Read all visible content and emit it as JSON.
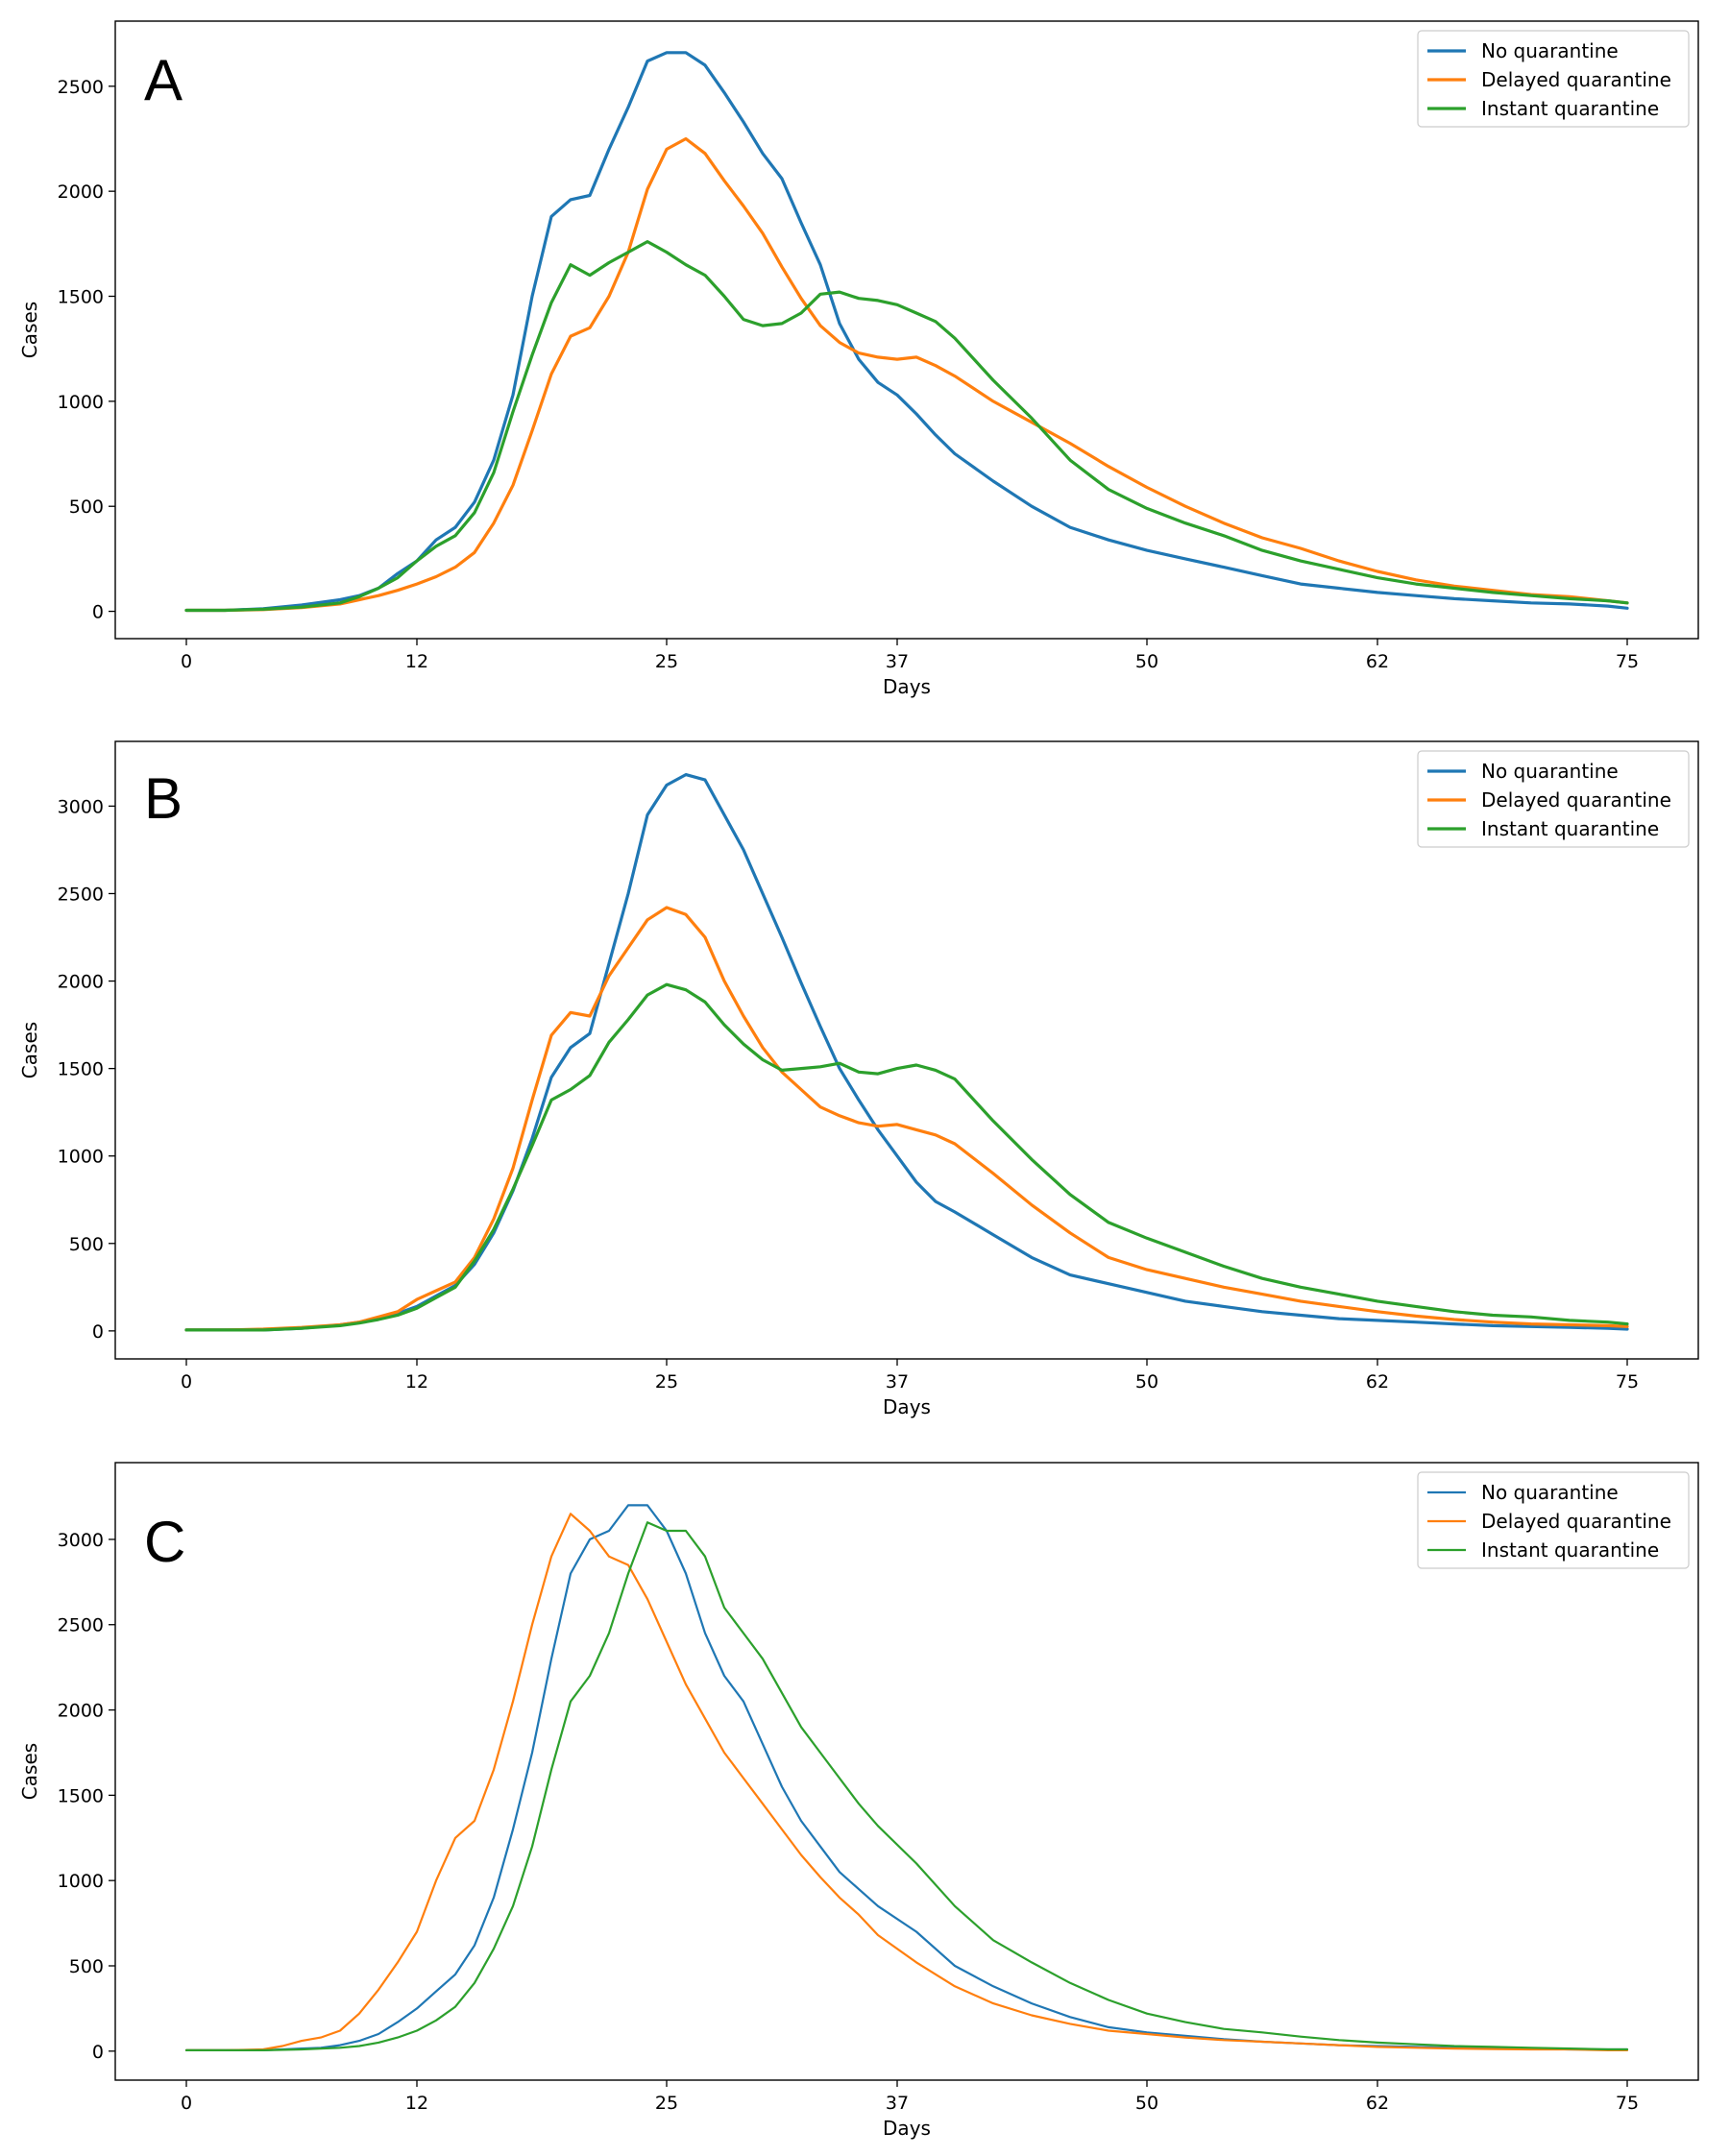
{
  "chart_data": [
    {
      "panel": "A",
      "type": "line",
      "xlabel": "Days",
      "ylabel": "Cases",
      "xticks": [
        0,
        12,
        25,
        37,
        50,
        62,
        75
      ],
      "yticks": [
        0,
        500,
        1000,
        1500,
        2000,
        2500
      ],
      "xlim": [
        -3.7,
        78.7
      ],
      "ylim": [
        -130,
        2810
      ],
      "legend_position": "top-right",
      "series": [
        {
          "name": "No quarantine",
          "color": "#1f77b4",
          "x": [
            0,
            2,
            4,
            6,
            8,
            9,
            10,
            11,
            12,
            13,
            14,
            15,
            16,
            17,
            18,
            19,
            20,
            21,
            22,
            23,
            24,
            25,
            26,
            27,
            28,
            29,
            30,
            31,
            32,
            33,
            34,
            35,
            36,
            37,
            38,
            39,
            40,
            42,
            44,
            46,
            48,
            50,
            52,
            54,
            56,
            58,
            60,
            62,
            64,
            66,
            68,
            70,
            72,
            74,
            75
          ],
          "y": [
            5,
            5,
            12,
            30,
            55,
            75,
            110,
            180,
            240,
            340,
            400,
            520,
            720,
            1030,
            1500,
            1880,
            1960,
            1980,
            2200,
            2400,
            2620,
            2660,
            2660,
            2600,
            2470,
            2330,
            2180,
            2060,
            1850,
            1650,
            1370,
            1200,
            1090,
            1030,
            940,
            840,
            750,
            620,
            500,
            400,
            340,
            290,
            250,
            210,
            170,
            130,
            110,
            90,
            75,
            60,
            50,
            40,
            35,
            25,
            15
          ]
        },
        {
          "name": "Delayed quarantine",
          "color": "#ff7f0e",
          "x": [
            0,
            2,
            4,
            6,
            8,
            9,
            10,
            11,
            12,
            13,
            14,
            15,
            16,
            17,
            18,
            19,
            20,
            21,
            22,
            23,
            24,
            25,
            26,
            27,
            28,
            29,
            30,
            31,
            32,
            33,
            34,
            35,
            36,
            37,
            38,
            39,
            40,
            42,
            44,
            46,
            48,
            50,
            52,
            54,
            56,
            58,
            60,
            62,
            64,
            66,
            68,
            70,
            72,
            74,
            75
          ],
          "y": [
            5,
            5,
            8,
            18,
            35,
            55,
            75,
            100,
            130,
            165,
            210,
            280,
            420,
            600,
            860,
            1130,
            1310,
            1350,
            1500,
            1710,
            2010,
            2200,
            2250,
            2180,
            2050,
            1930,
            1800,
            1640,
            1490,
            1360,
            1280,
            1230,
            1210,
            1200,
            1210,
            1170,
            1120,
            1000,
            900,
            800,
            690,
            590,
            500,
            420,
            350,
            300,
            240,
            190,
            150,
            120,
            100,
            80,
            70,
            50,
            40
          ]
        },
        {
          "name": "Instant quarantine",
          "color": "#2ca02c",
          "x": [
            0,
            2,
            4,
            6,
            8,
            9,
            10,
            11,
            12,
            13,
            14,
            15,
            16,
            17,
            18,
            19,
            20,
            21,
            22,
            23,
            24,
            25,
            26,
            27,
            28,
            29,
            30,
            31,
            32,
            33,
            34,
            35,
            36,
            37,
            38,
            39,
            40,
            42,
            44,
            46,
            48,
            50,
            52,
            54,
            56,
            58,
            60,
            62,
            64,
            66,
            68,
            70,
            72,
            74,
            75
          ],
          "y": [
            5,
            5,
            10,
            20,
            40,
            70,
            110,
            160,
            240,
            310,
            360,
            470,
            660,
            950,
            1220,
            1470,
            1650,
            1600,
            1660,
            1710,
            1760,
            1710,
            1650,
            1600,
            1500,
            1390,
            1360,
            1370,
            1420,
            1510,
            1520,
            1490,
            1480,
            1460,
            1420,
            1380,
            1300,
            1100,
            920,
            720,
            580,
            490,
            420,
            360,
            290,
            240,
            200,
            160,
            130,
            110,
            90,
            75,
            60,
            50,
            40
          ]
        }
      ]
    },
    {
      "panel": "B",
      "type": "line",
      "xlabel": "Days",
      "ylabel": "Cases",
      "xticks": [
        0,
        12,
        25,
        37,
        50,
        62,
        75
      ],
      "yticks": [
        0,
        500,
        1000,
        1500,
        2000,
        2500,
        3000
      ],
      "xlim": [
        -3.7,
        78.7
      ],
      "ylim": [
        -160,
        3370
      ],
      "legend_position": "top-right",
      "series": [
        {
          "name": "No quarantine",
          "color": "#1f77b4",
          "x": [
            0,
            2,
            4,
            6,
            8,
            9,
            10,
            11,
            12,
            13,
            14,
            15,
            16,
            17,
            18,
            19,
            20,
            21,
            22,
            23,
            24,
            25,
            26,
            27,
            28,
            29,
            30,
            31,
            32,
            33,
            34,
            35,
            36,
            37,
            38,
            39,
            40,
            42,
            44,
            46,
            48,
            50,
            52,
            54,
            56,
            58,
            60,
            62,
            64,
            66,
            68,
            70,
            72,
            74,
            75
          ],
          "y": [
            5,
            5,
            5,
            15,
            35,
            50,
            70,
            100,
            140,
            200,
            260,
            380,
            560,
            800,
            1100,
            1450,
            1620,
            1700,
            2100,
            2500,
            2950,
            3120,
            3180,
            3150,
            2950,
            2750,
            2500,
            2250,
            1990,
            1740,
            1500,
            1320,
            1150,
            1000,
            850,
            740,
            680,
            550,
            420,
            320,
            270,
            220,
            170,
            140,
            110,
            90,
            70,
            60,
            50,
            40,
            30,
            25,
            20,
            15,
            10
          ]
        },
        {
          "name": "Delayed quarantine",
          "color": "#ff7f0e",
          "x": [
            0,
            2,
            4,
            6,
            8,
            9,
            10,
            11,
            12,
            13,
            14,
            15,
            16,
            17,
            18,
            19,
            20,
            21,
            22,
            23,
            24,
            25,
            26,
            27,
            28,
            29,
            30,
            31,
            32,
            33,
            34,
            35,
            36,
            37,
            38,
            39,
            40,
            42,
            44,
            46,
            48,
            50,
            52,
            54,
            56,
            58,
            60,
            62,
            64,
            66,
            68,
            70,
            72,
            74,
            75
          ],
          "y": [
            5,
            5,
            10,
            20,
            35,
            50,
            80,
            110,
            180,
            230,
            280,
            420,
            640,
            930,
            1320,
            1690,
            1820,
            1800,
            2030,
            2190,
            2350,
            2420,
            2380,
            2250,
            2000,
            1800,
            1620,
            1480,
            1380,
            1280,
            1230,
            1190,
            1170,
            1180,
            1150,
            1120,
            1070,
            900,
            720,
            560,
            420,
            350,
            300,
            250,
            210,
            170,
            140,
            110,
            85,
            65,
            50,
            40,
            35,
            30,
            25
          ]
        },
        {
          "name": "Instant quarantine",
          "color": "#2ca02c",
          "x": [
            0,
            2,
            4,
            6,
            8,
            9,
            10,
            11,
            12,
            13,
            14,
            15,
            16,
            17,
            18,
            19,
            20,
            21,
            22,
            23,
            24,
            25,
            26,
            27,
            28,
            29,
            30,
            31,
            32,
            33,
            34,
            35,
            36,
            37,
            38,
            39,
            40,
            42,
            44,
            46,
            48,
            50,
            52,
            54,
            56,
            58,
            60,
            62,
            64,
            66,
            68,
            70,
            72,
            74,
            75
          ],
          "y": [
            5,
            5,
            5,
            15,
            30,
            45,
            65,
            90,
            130,
            190,
            250,
            400,
            580,
            810,
            1060,
            1320,
            1380,
            1460,
            1650,
            1780,
            1920,
            1980,
            1950,
            1880,
            1750,
            1640,
            1550,
            1490,
            1500,
            1510,
            1530,
            1480,
            1470,
            1500,
            1520,
            1490,
            1440,
            1200,
            980,
            780,
            620,
            530,
            450,
            370,
            300,
            250,
            210,
            170,
            140,
            110,
            90,
            80,
            60,
            50,
            40
          ]
        }
      ]
    },
    {
      "panel": "C",
      "type": "line",
      "xlabel": "Days",
      "ylabel": "Cases",
      "xticks": [
        0,
        12,
        25,
        37,
        50,
        62,
        75
      ],
      "yticks": [
        0,
        500,
        1000,
        1500,
        2000,
        2500,
        3000
      ],
      "xlim": [
        -3.7,
        78.7
      ],
      "ylim": [
        -170,
        3450
      ],
      "legend_position": "top-right",
      "series": [
        {
          "name": "No quarantine",
          "color": "#1f77b4",
          "x": [
            0,
            2,
            4,
            6,
            7,
            8,
            9,
            10,
            11,
            12,
            13,
            14,
            15,
            16,
            17,
            18,
            19,
            20,
            21,
            22,
            23,
            24,
            25,
            26,
            27,
            28,
            29,
            30,
            31,
            32,
            33,
            34,
            35,
            36,
            38,
            40,
            42,
            44,
            46,
            48,
            50,
            52,
            54,
            56,
            58,
            60,
            62,
            64,
            66,
            68,
            70,
            72,
            74,
            75
          ],
          "y": [
            5,
            5,
            5,
            15,
            20,
            35,
            60,
            100,
            170,
            250,
            350,
            450,
            620,
            900,
            1300,
            1750,
            2300,
            2800,
            3000,
            3050,
            3200,
            3200,
            3050,
            2800,
            2450,
            2200,
            2050,
            1800,
            1550,
            1350,
            1200,
            1050,
            950,
            850,
            700,
            500,
            380,
            280,
            200,
            140,
            110,
            90,
            70,
            55,
            45,
            35,
            30,
            25,
            20,
            20,
            15,
            10,
            10,
            10
          ]
        },
        {
          "name": "Delayed quarantine",
          "color": "#ff7f0e",
          "x": [
            0,
            2,
            4,
            5,
            6,
            7,
            8,
            9,
            10,
            11,
            12,
            13,
            14,
            15,
            16,
            17,
            18,
            19,
            20,
            21,
            22,
            23,
            24,
            25,
            26,
            27,
            28,
            29,
            30,
            31,
            32,
            33,
            34,
            35,
            36,
            38,
            40,
            42,
            44,
            46,
            48,
            50,
            52,
            54,
            56,
            58,
            60,
            62,
            64,
            66,
            68,
            70,
            72,
            74,
            75
          ],
          "y": [
            5,
            5,
            10,
            30,
            60,
            80,
            120,
            220,
            360,
            520,
            700,
            1000,
            1250,
            1350,
            1650,
            2050,
            2500,
            2900,
            3150,
            3050,
            2900,
            2850,
            2650,
            2400,
            2150,
            1950,
            1750,
            1600,
            1450,
            1300,
            1150,
            1020,
            900,
            800,
            680,
            520,
            380,
            280,
            210,
            160,
            120,
            100,
            80,
            65,
            55,
            45,
            35,
            25,
            20,
            15,
            12,
            10,
            10,
            5,
            5
          ]
        },
        {
          "name": "Instant quarantine",
          "color": "#2ca02c",
          "x": [
            0,
            2,
            4,
            6,
            8,
            9,
            10,
            11,
            12,
            13,
            14,
            15,
            16,
            17,
            18,
            19,
            20,
            21,
            22,
            23,
            24,
            25,
            26,
            27,
            28,
            29,
            30,
            31,
            32,
            33,
            34,
            35,
            36,
            38,
            40,
            42,
            44,
            46,
            48,
            50,
            52,
            54,
            56,
            58,
            60,
            62,
            64,
            66,
            68,
            70,
            72,
            74,
            75
          ],
          "y": [
            5,
            5,
            5,
            10,
            20,
            30,
            50,
            80,
            120,
            180,
            260,
            400,
            600,
            850,
            1200,
            1650,
            2050,
            2200,
            2450,
            2800,
            3100,
            3050,
            3050,
            2900,
            2600,
            2450,
            2300,
            2100,
            1900,
            1750,
            1600,
            1450,
            1320,
            1100,
            850,
            650,
            520,
            400,
            300,
            220,
            170,
            130,
            110,
            85,
            65,
            50,
            40,
            30,
            25,
            20,
            15,
            10,
            10
          ]
        }
      ]
    }
  ]
}
